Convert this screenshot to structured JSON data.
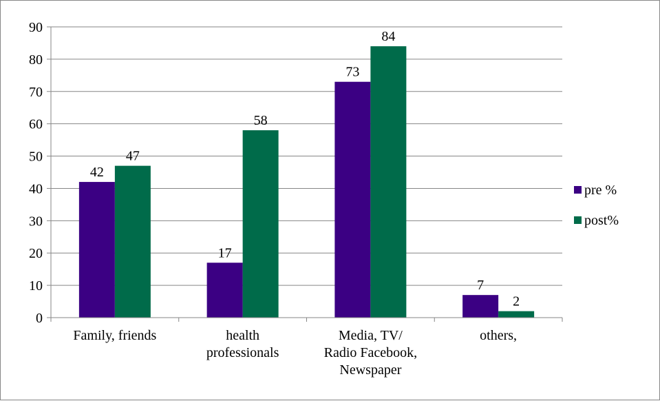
{
  "chart_data": {
    "type": "bar",
    "categories": [
      [
        "Family,  friends"
      ],
      [
        "health",
        "professionals"
      ],
      [
        "Media, TV/",
        "Radio Facebook,",
        "Newspaper"
      ],
      [
        "others,"
      ]
    ],
    "series": [
      {
        "name": "pre %",
        "values": [
          42,
          17,
          73,
          7
        ],
        "color": "#3B0083"
      },
      {
        "name": "post%",
        "values": [
          47,
          58,
          84,
          2
        ],
        "color": "#006B4A"
      }
    ],
    "ylim": [
      0,
      90
    ],
    "yticks": [
      0,
      10,
      20,
      30,
      40,
      50,
      60,
      70,
      80,
      90
    ],
    "grid": true,
    "legend_position": "right",
    "data_labels": true,
    "title": "",
    "xlabel": "",
    "ylabel": ""
  },
  "colors": {
    "gridline": "#868686",
    "axis": "#868686",
    "border": "#868686"
  }
}
